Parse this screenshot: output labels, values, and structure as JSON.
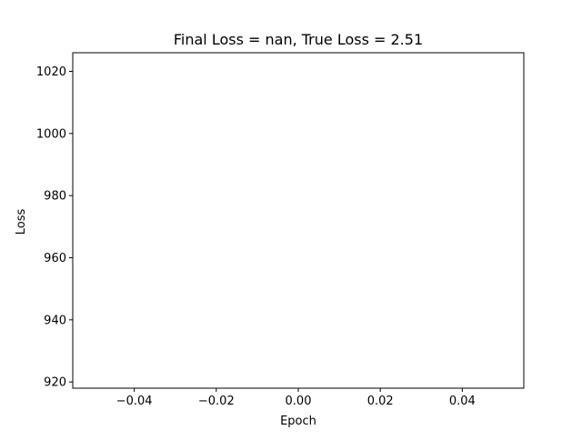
{
  "chart_data": {
    "type": "line",
    "title": "Final Loss = nan, True Loss = 2.51",
    "xlabel": "Epoch",
    "ylabel": "Loss",
    "xlim": [
      -0.055,
      0.055
    ],
    "ylim": [
      918,
      1026
    ],
    "xticks": [
      -0.04,
      -0.02,
      0.0,
      0.02,
      0.04
    ],
    "xtick_labels": [
      "−0.04",
      "−0.02",
      "0.00",
      "0.02",
      "0.04"
    ],
    "yticks": [
      920,
      940,
      960,
      980,
      1000,
      1020
    ],
    "ytick_labels": [
      "920",
      "940",
      "960",
      "980",
      "1000",
      "1020"
    ],
    "grid": false,
    "series": [
      {
        "x": [],
        "y": []
      }
    ]
  }
}
